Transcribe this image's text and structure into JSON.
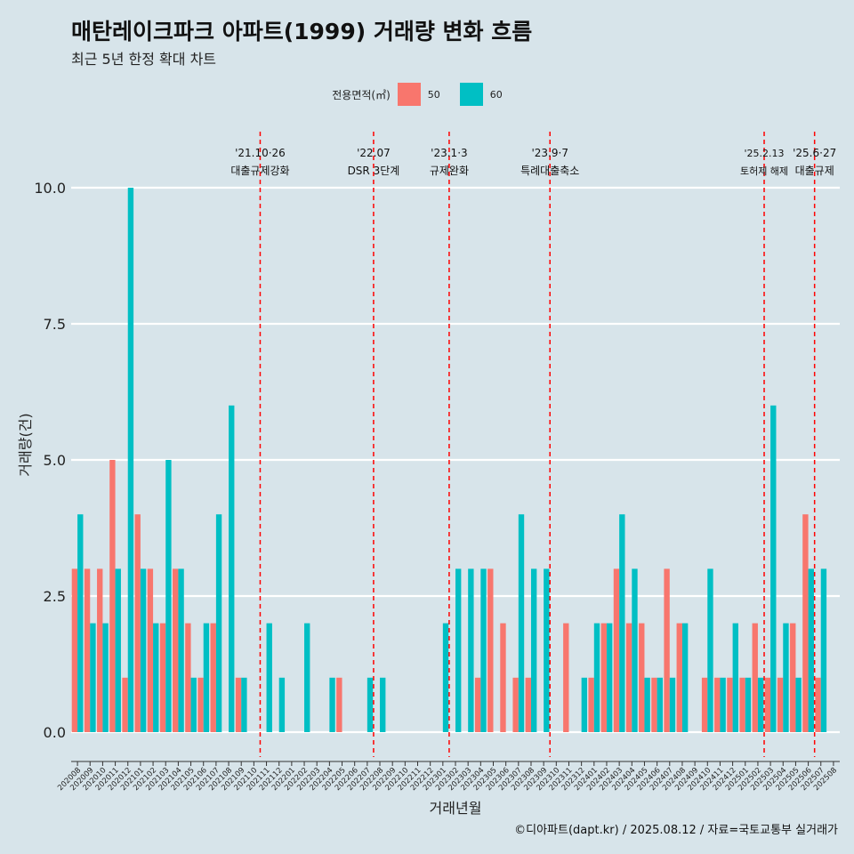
{
  "title": "매탄레이크파크 아파트(1999) 거래량 변화 흐름",
  "subtitle": "최근 5년 한정 확대 차트",
  "legend": {
    "title": "전용면적(㎡)",
    "items": [
      {
        "label": "50",
        "color": "#F8766D"
      },
      {
        "label": "60",
        "color": "#00BFC4"
      }
    ]
  },
  "caption": "©디아파트(dapt.kr) / 2025.08.12 / 자료=국토교통부 실거래가",
  "chart_data": {
    "type": "bar",
    "xlabel": "거래년월",
    "ylabel": "거래량(건)",
    "ylim": [
      -0.45,
      11.6
    ],
    "yticks": [
      0,
      2.5,
      5,
      7.5,
      10
    ],
    "ytick_labels": [
      "0.0",
      "2.5",
      "5.0",
      "7.5",
      "10.0"
    ],
    "categories": [
      "202008",
      "202009",
      "202010",
      "202011",
      "202012",
      "202101",
      "202102",
      "202103",
      "202104",
      "202105",
      "202106",
      "202107",
      "202108",
      "202109",
      "202110",
      "202111",
      "202112",
      "202201",
      "202202",
      "202203",
      "202204",
      "202205",
      "202206",
      "202207",
      "202208",
      "202209",
      "202210",
      "202211",
      "202212",
      "202301",
      "202302",
      "202303",
      "202304",
      "202305",
      "202306",
      "202307",
      "202308",
      "202309",
      "202310",
      "202311",
      "202312",
      "202401",
      "202402",
      "202403",
      "202404",
      "202405",
      "202406",
      "202407",
      "202408",
      "202409",
      "202410",
      "202411",
      "202412",
      "202501",
      "202502",
      "202503",
      "202504",
      "202505",
      "202506",
      "202507",
      "202508"
    ],
    "series": [
      {
        "name": "50",
        "color": "#F8766D",
        "values": [
          3,
          3,
          3,
          5,
          1,
          4,
          3,
          2,
          3,
          2,
          1,
          2,
          0,
          1,
          0,
          0,
          0,
          0,
          0,
          0,
          0,
          1,
          0,
          0,
          0,
          0,
          0,
          0,
          0,
          0,
          0,
          0,
          1,
          3,
          2,
          1,
          1,
          0,
          0,
          2,
          0,
          1,
          2,
          3,
          2,
          2,
          1,
          3,
          2,
          0,
          1,
          1,
          1,
          1,
          2,
          1,
          1,
          2,
          4,
          1,
          0
        ]
      },
      {
        "name": "60",
        "color": "#00BFC4",
        "values": [
          4,
          2,
          2,
          3,
          10,
          3,
          2,
          5,
          3,
          1,
          2,
          4,
          6,
          1,
          0,
          2,
          1,
          0,
          2,
          0,
          1,
          0,
          0,
          1,
          1,
          0,
          0,
          0,
          0,
          2,
          3,
          3,
          3,
          0,
          0,
          4,
          3,
          3,
          0,
          0,
          1,
          2,
          2,
          4,
          3,
          1,
          1,
          1,
          2,
          0,
          3,
          1,
          2,
          1,
          1,
          6,
          2,
          1,
          3,
          3,
          0
        ]
      }
    ],
    "annotations": [
      {
        "index": 14.5,
        "date": "'21.10·26",
        "label": "대출규제강화"
      },
      {
        "index": 23.5,
        "date": "'22.07",
        "label": "DSR 3단계"
      },
      {
        "index": 29.5,
        "date": "'23.1·3",
        "label": "규제완화"
      },
      {
        "index": 37.5,
        "date": "'23.9·7",
        "label": "특례대출축소"
      },
      {
        "index": 54.5,
        "date": "'25.2.13",
        "label": "토허제 해제"
      },
      {
        "index": 58.5,
        "date": "'25.6·27",
        "label": "대출규제"
      }
    ]
  }
}
